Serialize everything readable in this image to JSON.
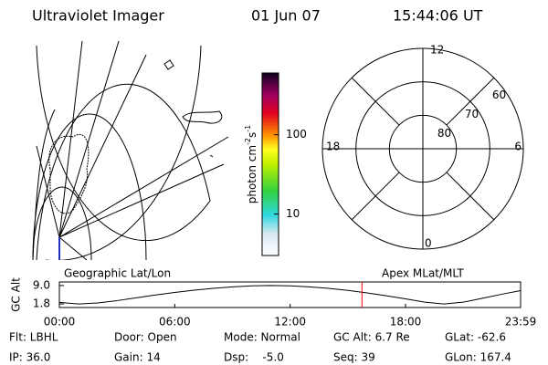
{
  "header": {
    "title": "Ultraviolet Imager",
    "date": "01 Jun 07",
    "time": "15:44:06 UT"
  },
  "map": {
    "label": "Geographic Lat/Lon"
  },
  "colorbar": {
    "label": [
      "photon cm",
      "-2",
      "s",
      "-1"
    ],
    "scale": "log",
    "lim": [
      3,
      600
    ],
    "ticks": [
      10,
      100
    ]
  },
  "polar": {
    "label": "Apex MLat/MLT",
    "lat_lim": [
      60,
      90
    ],
    "lat_rings": [
      60,
      70,
      80
    ],
    "mlt_labels": [
      "12",
      "6",
      "0",
      "18"
    ]
  },
  "chart_data": {
    "type": "line",
    "ylabel": "GC Alt",
    "x": [
      0,
      1,
      2,
      3,
      4,
      5,
      6,
      7,
      8,
      9,
      10,
      11,
      12,
      13,
      14,
      15,
      16,
      17,
      18,
      19,
      20,
      21,
      22,
      23,
      23.983
    ],
    "values": [
      2.4,
      1.8,
      2.2,
      3.1,
      4.2,
      5.3,
      6.3,
      7.2,
      7.9,
      8.5,
      8.9,
      9.0,
      8.9,
      8.5,
      7.9,
      7.1,
      6.1,
      5.0,
      3.8,
      2.5,
      1.8,
      2.5,
      4.0,
      5.6,
      7.0
    ],
    "color": "#000000",
    "xlim": [
      0,
      23.983
    ],
    "xticks": [
      {
        "value": 0,
        "label": "00:00"
      },
      {
        "value": 6,
        "label": "06:00"
      },
      {
        "value": 12,
        "label": "12:00"
      },
      {
        "value": 18,
        "label": "18:00"
      },
      {
        "value": 23.983,
        "label": "23:59"
      }
    ],
    "ylim": [
      0.4,
      10.4
    ],
    "yticks": [
      {
        "value": 9.0,
        "label": "9.0"
      },
      {
        "value": 1.8,
        "label": "1.8"
      }
    ],
    "marker_x": 15.735,
    "marker_color": "#ff0000"
  },
  "footer": {
    "rows": [
      [
        "Flt: LBHL",
        "Door: Open",
        "Mode: Normal",
        "GC Alt: 6.7 Re",
        "GLat: -62.6"
      ],
      [
        "IP: 36.0",
        "Gain: 14",
        "Dsp:    -5.0",
        "Seq: 39",
        "GLon: 167.4"
      ]
    ]
  }
}
